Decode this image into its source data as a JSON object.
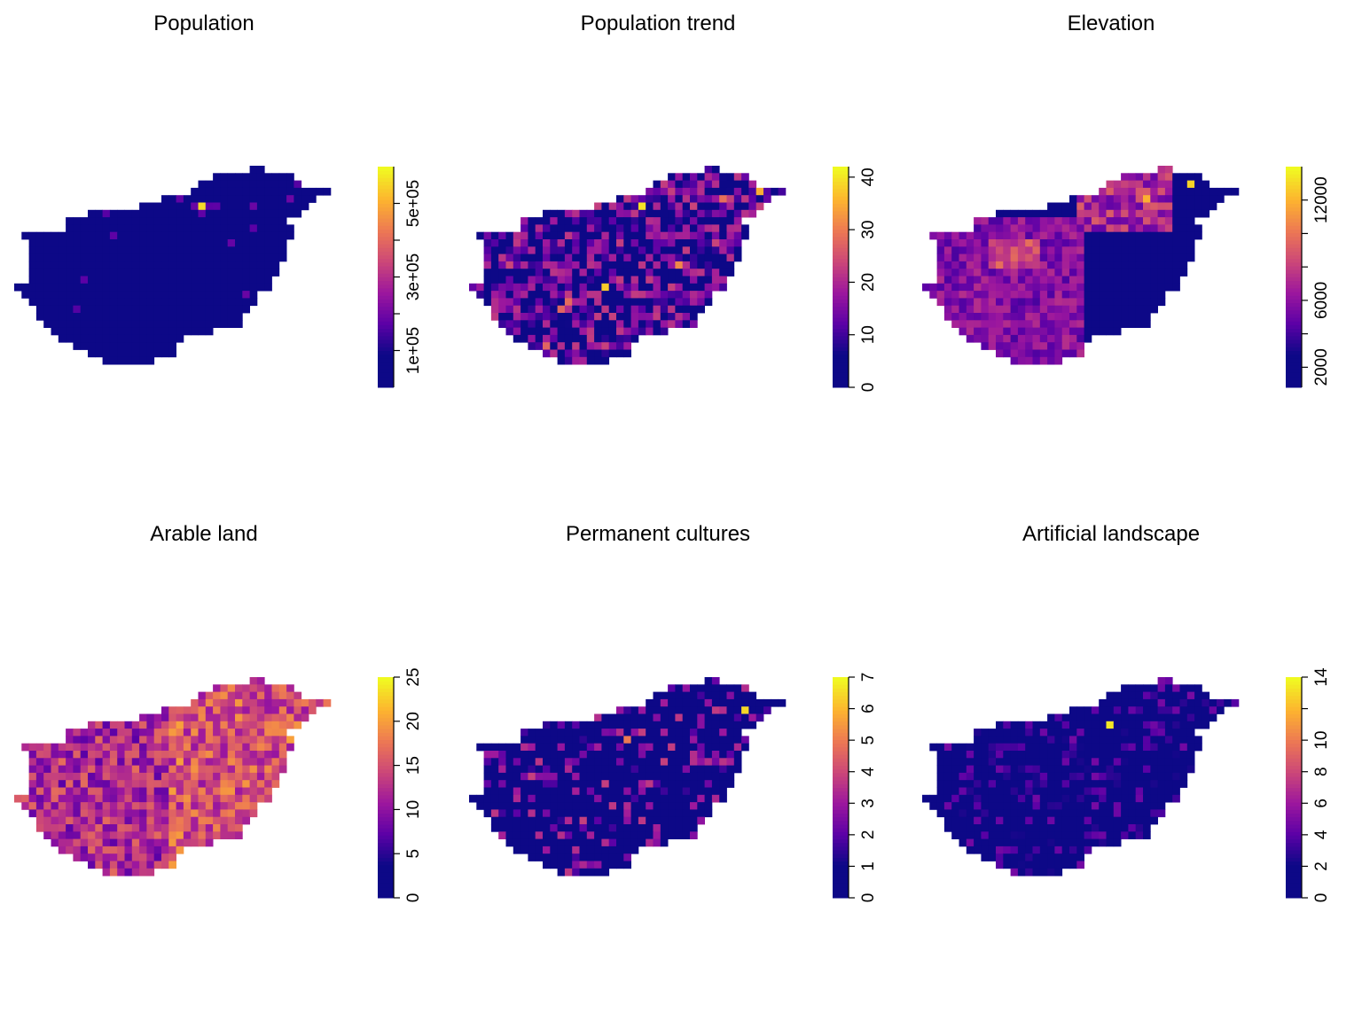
{
  "colormap": {
    "name": "plasma-like",
    "stops": [
      "#0d0887",
      "#0d0887",
      "#5c01a6",
      "#9c179e",
      "#cc4778",
      "#ed7953",
      "#fdb42f",
      "#f0f921"
    ]
  },
  "chart_data": [
    {
      "type": "heatmap",
      "title": "Population",
      "legend": {
        "min": 0,
        "max": 600000,
        "ticks": [
          100000,
          200000,
          300000,
          400000,
          500000
        ],
        "tick_labels": [
          "1e+05",
          "",
          "3e+05",
          "",
          "5e+05"
        ]
      },
      "hotspots": [
        {
          "col": 25,
          "row": 5,
          "value": 560000
        }
      ]
    },
    {
      "type": "heatmap",
      "title": "Population trend",
      "legend": {
        "min": 0,
        "max": 42,
        "ticks": [
          0,
          10,
          20,
          30,
          40
        ],
        "tick_labels": [
          "0",
          "10",
          "20",
          "30",
          "40"
        ]
      },
      "hotspots": [
        {
          "col": 23,
          "row": 5,
          "value": 40
        },
        {
          "col": 18,
          "row": 16,
          "value": 38
        }
      ]
    },
    {
      "type": "heatmap",
      "title": "Elevation",
      "legend": {
        "min": 800,
        "max": 14000,
        "ticks": [
          2000,
          4000,
          6000,
          8000,
          10000,
          12000
        ],
        "tick_labels": [
          "2000",
          "",
          "6000",
          "",
          "",
          "12000"
        ]
      },
      "hotspots": [
        {
          "col": 36,
          "row": 2,
          "value": 13000
        },
        {
          "col": 30,
          "row": 4,
          "value": 12000
        }
      ]
    },
    {
      "type": "heatmap",
      "title": "Arable land",
      "legend": {
        "min": 0,
        "max": 25,
        "ticks": [
          0,
          5,
          10,
          15,
          20,
          25
        ],
        "tick_labels": [
          "0",
          "5",
          "10",
          "15",
          "20",
          "25"
        ]
      },
      "hotspots": []
    },
    {
      "type": "heatmap",
      "title": "Permanent cultures",
      "legend": {
        "min": 0,
        "max": 7,
        "ticks": [
          0,
          1,
          2,
          3,
          4,
          5,
          6,
          7
        ],
        "tick_labels": [
          "0",
          "1",
          "2",
          "3",
          "4",
          "5",
          "6",
          "7"
        ]
      },
      "hotspots": [
        {
          "col": 37,
          "row": 4,
          "value": 6.5
        },
        {
          "col": 21,
          "row": 8,
          "value": 5
        }
      ]
    },
    {
      "type": "heatmap",
      "title": "Artificial landscape",
      "legend": {
        "min": 0,
        "max": 14,
        "ticks": [
          0,
          2,
          4,
          6,
          8,
          10,
          12,
          14
        ],
        "tick_labels": [
          "0",
          "2",
          "4",
          "6",
          "8",
          "10",
          "",
          "14"
        ]
      },
      "hotspots": [
        {
          "col": 25,
          "row": 6,
          "value": 13.5
        }
      ]
    }
  ]
}
